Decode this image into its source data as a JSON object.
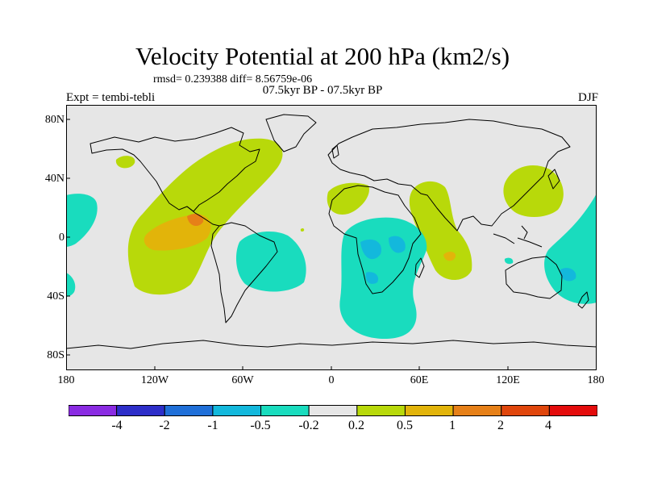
{
  "title": "Velocity Potential at 200 hPa (km2/s)",
  "stats": "rmsd= 0.239388 diff= 8.56759e-06",
  "period": "07.5kyr BP - 07.5kyr BP",
  "experiment": "Expt = tembi-tebli",
  "season": "DJF",
  "lat_labels": [
    "80N",
    "40N",
    "0",
    "40S",
    "80S"
  ],
  "lon_labels": [
    "180",
    "120W",
    "60W",
    "0",
    "60E",
    "120E",
    "180"
  ],
  "colorbar": {
    "labels": [
      "-4",
      "-2",
      "-1",
      "-0.5",
      "-0.2",
      "0.2",
      "0.5",
      "1",
      "2",
      "4"
    ],
    "colors": [
      "#8a2be2",
      "#2d2ec9",
      "#1f6fd8",
      "#13b8dc",
      "#19dcbe",
      "#e6e6e6",
      "#b8d90a",
      "#e2b40a",
      "#e68018",
      "#e0460c",
      "#e40c0c"
    ]
  },
  "fill_colors": {
    "background": "#e6e6e6",
    "pos_0_2": "#b8d90a",
    "pos_0_5": "#e2b40a",
    "pos_1": "#e68018",
    "neg_0_2": "#19dcbe",
    "neg_0_5": "#13b8dc"
  }
}
